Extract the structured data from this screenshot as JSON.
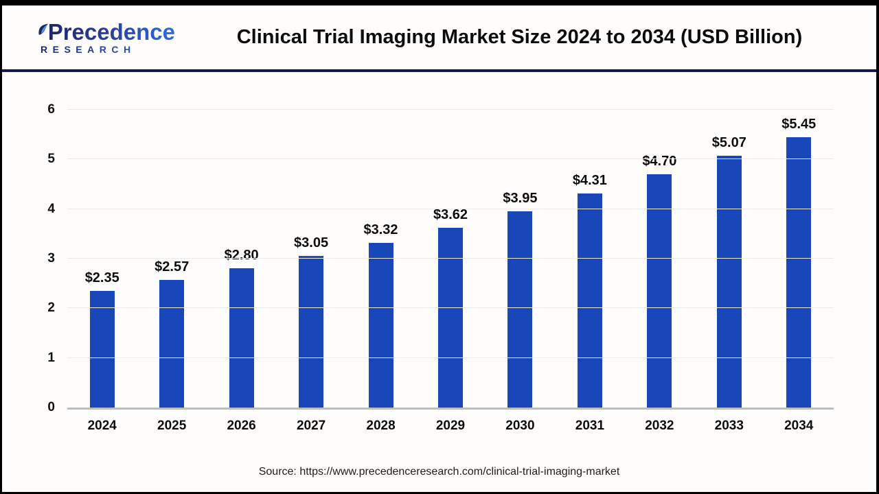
{
  "header": {
    "logo_line1": "Precedence",
    "logo_line2": "RESEARCH",
    "title": "Clinical Trial Imaging Market Size 2024 to 2034 (USD Billion)"
  },
  "chart_data": {
    "type": "bar",
    "title": "Clinical Trial Imaging Market Size 2024 to 2034 (USD Billion)",
    "categories": [
      "2024",
      "2025",
      "2026",
      "2027",
      "2028",
      "2029",
      "2030",
      "2031",
      "2032",
      "2033",
      "2034"
    ],
    "values": [
      2.35,
      2.57,
      2.8,
      3.05,
      3.32,
      3.62,
      3.95,
      4.31,
      4.7,
      5.07,
      5.45
    ],
    "value_labels": [
      "$2.35",
      "$2.57",
      "$2.80",
      "$3.05",
      "$3.32",
      "$3.62",
      "$3.95",
      "$4.31",
      "$4.70",
      "$5.07",
      "$5.45"
    ],
    "xlabel": "",
    "ylabel": "",
    "ylim": [
      0,
      6
    ],
    "yticks": [
      0,
      1,
      2,
      3,
      4,
      5,
      6
    ],
    "grid": true,
    "legend": null,
    "bar_color": "#1847ba"
  },
  "colors": {
    "bar": "#1847ba",
    "header_separator": "#14194b",
    "axis_line": "#bdbdbd",
    "gridline": "#ebebeb",
    "logo_gradient_start": "#1d2766",
    "logo_gradient_end": "#2f6ade"
  },
  "footer": {
    "source": "Source: https://www.precedenceresearch.com/clinical-trial-imaging-market"
  }
}
